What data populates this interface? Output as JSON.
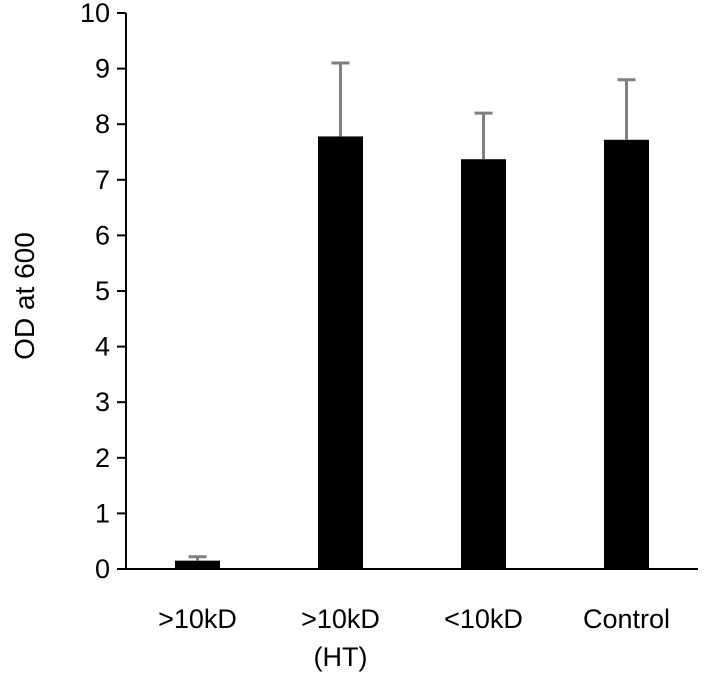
{
  "chart_data": {
    "type": "bar",
    "categories": [
      ">10kD",
      ">10kD\n(HT)",
      "<10kD",
      "Control"
    ],
    "values": [
      0.15,
      7.78,
      7.37,
      7.72
    ],
    "error_plus": [
      0.07,
      1.32,
      0.83,
      1.08
    ],
    "ylabel": "OD at 600",
    "ylim": [
      0,
      10
    ],
    "yticks": [
      "0",
      "1",
      "2",
      "3",
      "4",
      "5",
      "6",
      "7",
      "8",
      "9",
      "10"
    ],
    "grid": false,
    "legend": "none",
    "bar_color": "#000000",
    "error_color": "#7f7f7f"
  }
}
